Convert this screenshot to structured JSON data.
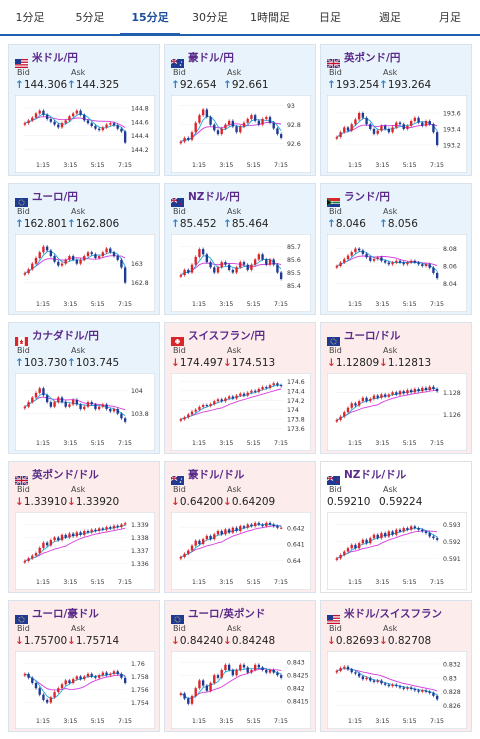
{
  "tabs": [
    {
      "label": "1分足",
      "active": false
    },
    {
      "label": "5分足",
      "active": false
    },
    {
      "label": "15分足",
      "active": true
    },
    {
      "label": "30分足",
      "active": false
    },
    {
      "label": "1時間足",
      "active": false
    },
    {
      "label": "日足",
      "active": false
    },
    {
      "label": "週足",
      "active": false
    },
    {
      "label": "月足",
      "active": false
    }
  ],
  "labels": {
    "bid": "Bid",
    "ask": "Ask"
  },
  "colors": {
    "up_bg": "#e9f3fb",
    "down_bg": "#fcecec",
    "bull": "#d9262a",
    "bear": "#1f3a93",
    "ma_short": "#1fa8e0",
    "ma_long": "#d63ae0"
  },
  "pairs": [
    {
      "id": "usdjpy",
      "name": "米ドル/円",
      "flag": "us",
      "bid": "144.306",
      "ask": "144.325",
      "direction": "up",
      "chart_data": {
        "type": "candlestick",
        "x_ticks": [
          "1:15",
          "3:15",
          "5:15",
          "7:15"
        ],
        "y_ticks": [
          "144.8",
          "144.6",
          "144.4",
          "144.2"
        ],
        "ylim": [
          144.15,
          144.9
        ],
        "close": [
          144.58,
          144.62,
          144.66,
          144.72,
          144.76,
          144.7,
          144.64,
          144.6,
          144.56,
          144.52,
          144.58,
          144.62,
          144.68,
          144.72,
          144.76,
          144.7,
          144.62,
          144.58,
          144.54,
          144.5,
          144.48,
          144.52,
          144.56,
          144.58,
          144.55,
          144.5,
          144.46,
          144.3
        ]
      }
    },
    {
      "id": "audjpy",
      "name": "豪ドル/円",
      "flag": "au",
      "bid": "92.654",
      "ask": "92.661",
      "direction": "up",
      "chart_data": {
        "type": "candlestick",
        "x_ticks": [
          "1:15",
          "3:15",
          "5:15",
          "7:15"
        ],
        "y_ticks": [
          "93",
          "92.8",
          "92.6"
        ],
        "ylim": [
          92.5,
          93.05
        ],
        "close": [
          92.62,
          92.66,
          92.64,
          92.72,
          92.82,
          92.9,
          92.96,
          92.88,
          92.8,
          92.74,
          92.7,
          92.76,
          92.8,
          92.84,
          92.78,
          92.72,
          92.78,
          92.82,
          92.86,
          92.9,
          92.84,
          92.8,
          92.86,
          92.88,
          92.82,
          92.76,
          92.7,
          92.66
        ]
      }
    },
    {
      "id": "gbpjpy",
      "name": "英ポンド/円",
      "flag": "gb",
      "bid": "193.254",
      "ask": "193.264",
      "direction": "up",
      "chart_data": {
        "type": "candlestick",
        "x_ticks": [
          "1:15",
          "3:15",
          "5:15",
          "7:15"
        ],
        "y_ticks": [
          "193.6",
          "193.4",
          "193.2"
        ],
        "ylim": [
          193.1,
          193.75
        ],
        "close": [
          193.3,
          193.36,
          193.42,
          193.38,
          193.46,
          193.52,
          193.6,
          193.54,
          193.46,
          193.4,
          193.34,
          193.38,
          193.44,
          193.4,
          193.36,
          193.42,
          193.48,
          193.46,
          193.4,
          193.44,
          193.5,
          193.54,
          193.48,
          193.44,
          193.5,
          193.46,
          193.36,
          193.2
        ]
      }
    },
    {
      "id": "eurjpy",
      "name": "ユーロ/円",
      "flag": "eu",
      "bid": "162.801",
      "ask": "162.806",
      "direction": "up",
      "chart_data": {
        "type": "candlestick",
        "x_ticks": [
          "1:15",
          "3:15",
          "5:15",
          "7:15"
        ],
        "y_ticks": [
          "163",
          "162.8"
        ],
        "ylim": [
          162.7,
          163.25
        ],
        "close": [
          162.9,
          162.94,
          163.0,
          163.06,
          163.12,
          163.18,
          163.14,
          163.08,
          163.02,
          162.98,
          163.0,
          163.04,
          163.08,
          163.04,
          163.0,
          163.04,
          163.08,
          163.12,
          163.1,
          163.06,
          163.08,
          163.12,
          163.16,
          163.12,
          163.08,
          163.04,
          162.96,
          162.8
        ]
      }
    },
    {
      "id": "nzdjpy",
      "name": "NZドル/円",
      "flag": "nz",
      "bid": "85.452",
      "ask": "85.464",
      "direction": "up",
      "chart_data": {
        "type": "candlestick",
        "x_ticks": [
          "1:15",
          "3:15",
          "5:15",
          "7:15"
        ],
        "y_ticks": [
          "85.7",
          "85.6",
          "85.5",
          "85.4"
        ],
        "ylim": [
          85.35,
          85.75
        ],
        "close": [
          85.48,
          85.52,
          85.5,
          85.56,
          85.62,
          85.68,
          85.64,
          85.58,
          85.54,
          85.5,
          85.54,
          85.58,
          85.56,
          85.52,
          85.5,
          85.54,
          85.58,
          85.56,
          85.52,
          85.56,
          85.6,
          85.64,
          85.6,
          85.56,
          85.6,
          85.56,
          85.5,
          85.45
        ]
      }
    },
    {
      "id": "zarjpy",
      "name": "ランド/円",
      "flag": "za",
      "bid": "8.046",
      "ask": "8.056",
      "direction": "up",
      "chart_data": {
        "type": "candlestick",
        "x_ticks": [
          "1:15",
          "3:15",
          "5:15",
          "7:15"
        ],
        "y_ticks": [
          "8.08",
          "8.06",
          "8.04"
        ],
        "ylim": [
          8.03,
          8.09
        ],
        "close": [
          8.06,
          8.064,
          8.068,
          8.072,
          8.076,
          8.08,
          8.078,
          8.074,
          8.07,
          8.066,
          8.068,
          8.07,
          8.066,
          8.064,
          8.062,
          8.064,
          8.066,
          8.064,
          8.062,
          8.064,
          8.066,
          8.064,
          8.062,
          8.06,
          8.062,
          8.058,
          8.052,
          8.046
        ]
      }
    },
    {
      "id": "cadjpy",
      "name": "カナダドル/円",
      "flag": "ca",
      "bid": "103.730",
      "ask": "103.745",
      "direction": "up",
      "chart_data": {
        "type": "candlestick",
        "x_ticks": [
          "1:15",
          "3:15",
          "5:15",
          "7:15"
        ],
        "y_ticks": [
          "104",
          "103.8"
        ],
        "ylim": [
          103.65,
          104.1
        ],
        "close": [
          103.86,
          103.9,
          103.94,
          103.98,
          104.02,
          103.96,
          103.9,
          103.86,
          103.9,
          103.94,
          103.9,
          103.86,
          103.88,
          103.92,
          103.88,
          103.84,
          103.86,
          103.9,
          103.88,
          103.84,
          103.86,
          103.88,
          103.84,
          103.82,
          103.84,
          103.8,
          103.76,
          103.73
        ]
      }
    },
    {
      "id": "chfjpy",
      "name": "スイスフラン/円",
      "flag": "ch",
      "bid": "174.497",
      "ask": "174.513",
      "direction": "down",
      "chart_data": {
        "type": "candlestick",
        "x_ticks": [
          "1:15",
          "3:15",
          "5:15",
          "7:15"
        ],
        "y_ticks": [
          "174.6",
          "174.4",
          "174.2",
          "174",
          "173.8",
          "173.6"
        ],
        "ylim": [
          173.55,
          174.65
        ],
        "close": [
          173.8,
          173.84,
          173.9,
          173.96,
          174.0,
          174.06,
          174.1,
          174.08,
          174.12,
          174.18,
          174.22,
          174.18,
          174.24,
          174.28,
          174.24,
          174.3,
          174.34,
          174.3,
          174.36,
          174.4,
          174.38,
          174.44,
          174.48,
          174.46,
          174.52,
          174.56,
          174.52,
          174.5
        ]
      }
    },
    {
      "id": "eurusd",
      "name": "ユーロ/ドル",
      "flag": "eu",
      "bid": "1.12809",
      "ask": "1.12813",
      "direction": "down",
      "chart_data": {
        "type": "candlestick",
        "x_ticks": [
          "1:15",
          "3:15",
          "5:15",
          "7:15"
        ],
        "y_ticks": [
          "1.128",
          "1.126"
        ],
        "ylim": [
          1.1245,
          1.1292
        ],
        "close": [
          1.1255,
          1.1258,
          1.1262,
          1.1266,
          1.127,
          1.1268,
          1.1272,
          1.1275,
          1.1272,
          1.1274,
          1.1277,
          1.1275,
          1.1278,
          1.1276,
          1.1278,
          1.128,
          1.1278,
          1.1281,
          1.1279,
          1.1282,
          1.128,
          1.1283,
          1.1281,
          1.1284,
          1.1282,
          1.1285,
          1.1283,
          1.1281
        ]
      }
    },
    {
      "id": "gbpusd",
      "name": "英ポンド/ドル",
      "flag": "gb",
      "bid": "1.33910",
      "ask": "1.33920",
      "direction": "down",
      "chart_data": {
        "type": "candlestick",
        "x_ticks": [
          "1:15",
          "3:15",
          "5:15",
          "7:15"
        ],
        "y_ticks": [
          "1.339",
          "1.338",
          "1.337",
          "1.336"
        ],
        "ylim": [
          1.3355,
          1.3395
        ],
        "close": [
          1.3362,
          1.3364,
          1.3366,
          1.3368,
          1.3372,
          1.3376,
          1.3374,
          1.3378,
          1.338,
          1.3378,
          1.3382,
          1.338,
          1.3383,
          1.3381,
          1.3384,
          1.3382,
          1.3385,
          1.3384,
          1.3386,
          1.3385,
          1.3387,
          1.3386,
          1.3388,
          1.3387,
          1.3389,
          1.3388,
          1.339,
          1.3391
        ]
      }
    },
    {
      "id": "audusd",
      "name": "豪ドル/ドル",
      "flag": "au",
      "bid": "0.64200",
      "ask": "0.64209",
      "direction": "down",
      "chart_data": {
        "type": "candlestick",
        "x_ticks": [
          "1:15",
          "3:15",
          "5:15",
          "7:15"
        ],
        "y_ticks": [
          "0.642",
          "0.641",
          "0.64"
        ],
        "ylim": [
          0.6394,
          0.6426
        ],
        "close": [
          0.6402,
          0.6404,
          0.6406,
          0.6409,
          0.6412,
          0.641,
          0.6413,
          0.6415,
          0.6413,
          0.6416,
          0.6418,
          0.6416,
          0.6419,
          0.6417,
          0.642,
          0.6418,
          0.6421,
          0.642,
          0.6422,
          0.6421,
          0.6423,
          0.6422,
          0.6421,
          0.6423,
          0.6422,
          0.6421,
          0.642,
          0.642
        ]
      }
    },
    {
      "id": "nzdusd",
      "name": "NZドル/ドル",
      "flag": "nz",
      "bid": "0.59210",
      "ask": "0.59224",
      "direction": "none",
      "chart_data": {
        "type": "candlestick",
        "x_ticks": [
          "1:15",
          "3:15",
          "5:15",
          "7:15"
        ],
        "y_ticks": [
          "0.593",
          "0.592",
          "0.591"
        ],
        "ylim": [
          0.5903,
          0.5934
        ],
        "close": [
          0.591,
          0.5912,
          0.5914,
          0.5916,
          0.5918,
          0.5916,
          0.5919,
          0.5921,
          0.5919,
          0.5922,
          0.5924,
          0.5922,
          0.5925,
          0.5923,
          0.5926,
          0.5924,
          0.5927,
          0.5926,
          0.5928,
          0.5927,
          0.5929,
          0.5928,
          0.5927,
          0.5926,
          0.5925,
          0.5923,
          0.5922,
          0.5921
        ]
      }
    },
    {
      "id": "euraud",
      "name": "ユーロ/豪ドル",
      "flag": "eu",
      "bid": "1.75700",
      "ask": "1.75714",
      "direction": "down",
      "chart_data": {
        "type": "candlestick",
        "x_ticks": [
          "1:15",
          "3:15",
          "5:15",
          "7:15"
        ],
        "y_ticks": [
          "1.76",
          "1.758",
          "1.756",
          "1.754"
        ],
        "ylim": [
          1.753,
          1.761
        ],
        "close": [
          1.7584,
          1.7578,
          1.757,
          1.7562,
          1.7552,
          1.7544,
          1.754,
          1.7548,
          1.7556,
          1.7562,
          1.7568,
          1.7574,
          1.757,
          1.7576,
          1.758,
          1.7576,
          1.758,
          1.7584,
          1.758,
          1.7578,
          1.7582,
          1.7586,
          1.7582,
          1.7584,
          1.7588,
          1.7584,
          1.7578,
          1.757
        ]
      }
    },
    {
      "id": "eurgbp",
      "name": "ユーロ/英ポンド",
      "flag": "eu",
      "bid": "0.84240",
      "ask": "0.84248",
      "direction": "down",
      "chart_data": {
        "type": "candlestick",
        "x_ticks": [
          "1:15",
          "3:15",
          "5:15",
          "7:15"
        ],
        "y_ticks": [
          "0.843",
          "0.8425",
          "0.842",
          "0.8415"
        ],
        "ylim": [
          0.8412,
          0.8432
        ],
        "close": [
          0.8418,
          0.8416,
          0.8414,
          0.8417,
          0.842,
          0.8423,
          0.8421,
          0.8419,
          0.8422,
          0.8425,
          0.8424,
          0.8427,
          0.8429,
          0.8427,
          0.8425,
          0.8427,
          0.8429,
          0.8428,
          0.8426,
          0.8427,
          0.8429,
          0.8428,
          0.8427,
          0.8426,
          0.8427,
          0.8426,
          0.8425,
          0.8424
        ]
      }
    },
    {
      "id": "usdchf",
      "name": "米ドル/スイスフラン",
      "flag": "us",
      "bid": "0.82693",
      "ask": "0.82708",
      "direction": "down",
      "chart_data": {
        "type": "candlestick",
        "x_ticks": [
          "1:15",
          "3:15",
          "5:15",
          "7:15"
        ],
        "y_ticks": [
          "0.832",
          "0.83",
          "0.828",
          "0.826"
        ],
        "ylim": [
          0.8255,
          0.833
        ],
        "close": [
          0.831,
          0.8314,
          0.8316,
          0.8312,
          0.8308,
          0.8306,
          0.8302,
          0.8298,
          0.83,
          0.8296,
          0.8294,
          0.8296,
          0.8292,
          0.829,
          0.8288,
          0.829,
          0.8288,
          0.8286,
          0.8284,
          0.8286,
          0.8284,
          0.8282,
          0.828,
          0.8282,
          0.828,
          0.8278,
          0.8274,
          0.8269
        ]
      }
    }
  ]
}
